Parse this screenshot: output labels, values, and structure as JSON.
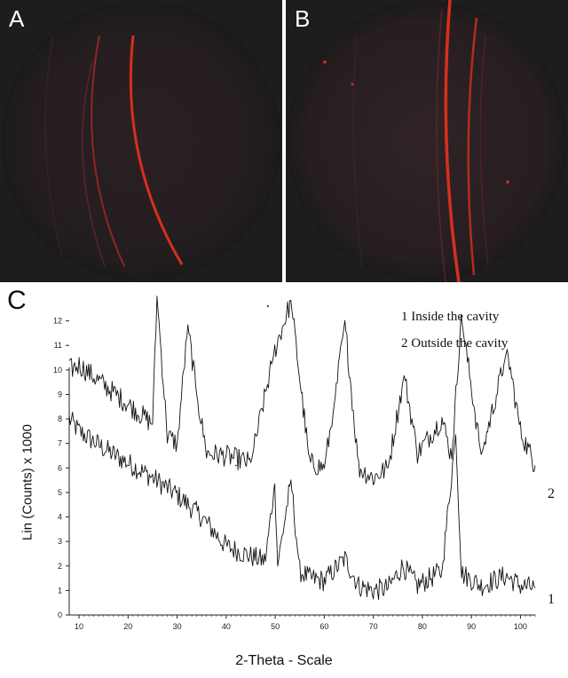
{
  "panels": {
    "a": {
      "label": "A"
    },
    "b": {
      "label": "B"
    },
    "c": {
      "label": "C"
    },
    "background": "#1d1d1d",
    "ring_color": "#e0301e"
  },
  "chart_data": {
    "type": "line",
    "xlabel": "2-Theta - Scale",
    "ylabel": "Lin (Counts) x 1000",
    "xlim": [
      8,
      103
    ],
    "ylim": [
      0,
      13
    ],
    "xticks": [
      10,
      20,
      30,
      40,
      50,
      60,
      70,
      80,
      90,
      100
    ],
    "yticks": [
      0,
      1,
      2,
      3,
      4,
      5,
      6,
      7,
      8,
      9,
      10,
      11,
      12
    ],
    "legend": [
      "1 Inside the cavity",
      "2 Outside the cavity"
    ],
    "series": [
      {
        "name": "1",
        "x": [
          8,
          10,
          15,
          20,
          25,
          30,
          35,
          40,
          45,
          48,
          49.9,
          50.5,
          53.2,
          55,
          57,
          60,
          64.2,
          67,
          70,
          73,
          76,
          79,
          84,
          86.8,
          88,
          92,
          97,
          100,
          103
        ],
        "y": [
          8.0,
          7.5,
          6.8,
          6.2,
          5.6,
          4.9,
          4.0,
          2.8,
          2.4,
          2.2,
          5.4,
          2.0,
          5.5,
          1.8,
          1.5,
          1.4,
          2.3,
          1.2,
          1.0,
          1.1,
          2.0,
          1.2,
          1.8,
          7.4,
          1.7,
          1.2,
          1.6,
          1.2,
          1.1
        ]
      },
      {
        "name": "2",
        "x": [
          8,
          10,
          15,
          20,
          25,
          25.9,
          28,
          30,
          32.2,
          34,
          36,
          40,
          45,
          49.9,
          53.2,
          57,
          60,
          62,
          64.2,
          67,
          70,
          73,
          76.3,
          79,
          84,
          86,
          87.9,
          92,
          97.3,
          100,
          103
        ],
        "y": [
          10.0,
          10.2,
          9.4,
          8.6,
          7.8,
          13.0,
          7.3,
          7.0,
          11.8,
          9.0,
          6.6,
          6.5,
          6.2,
          10.8,
          12.8,
          6.2,
          6.0,
          8.5,
          12.0,
          6.0,
          5.6,
          6.0,
          9.8,
          6.6,
          8.0,
          6.4,
          12.2,
          6.5,
          10.8,
          7.5,
          6.1
        ]
      }
    ]
  }
}
